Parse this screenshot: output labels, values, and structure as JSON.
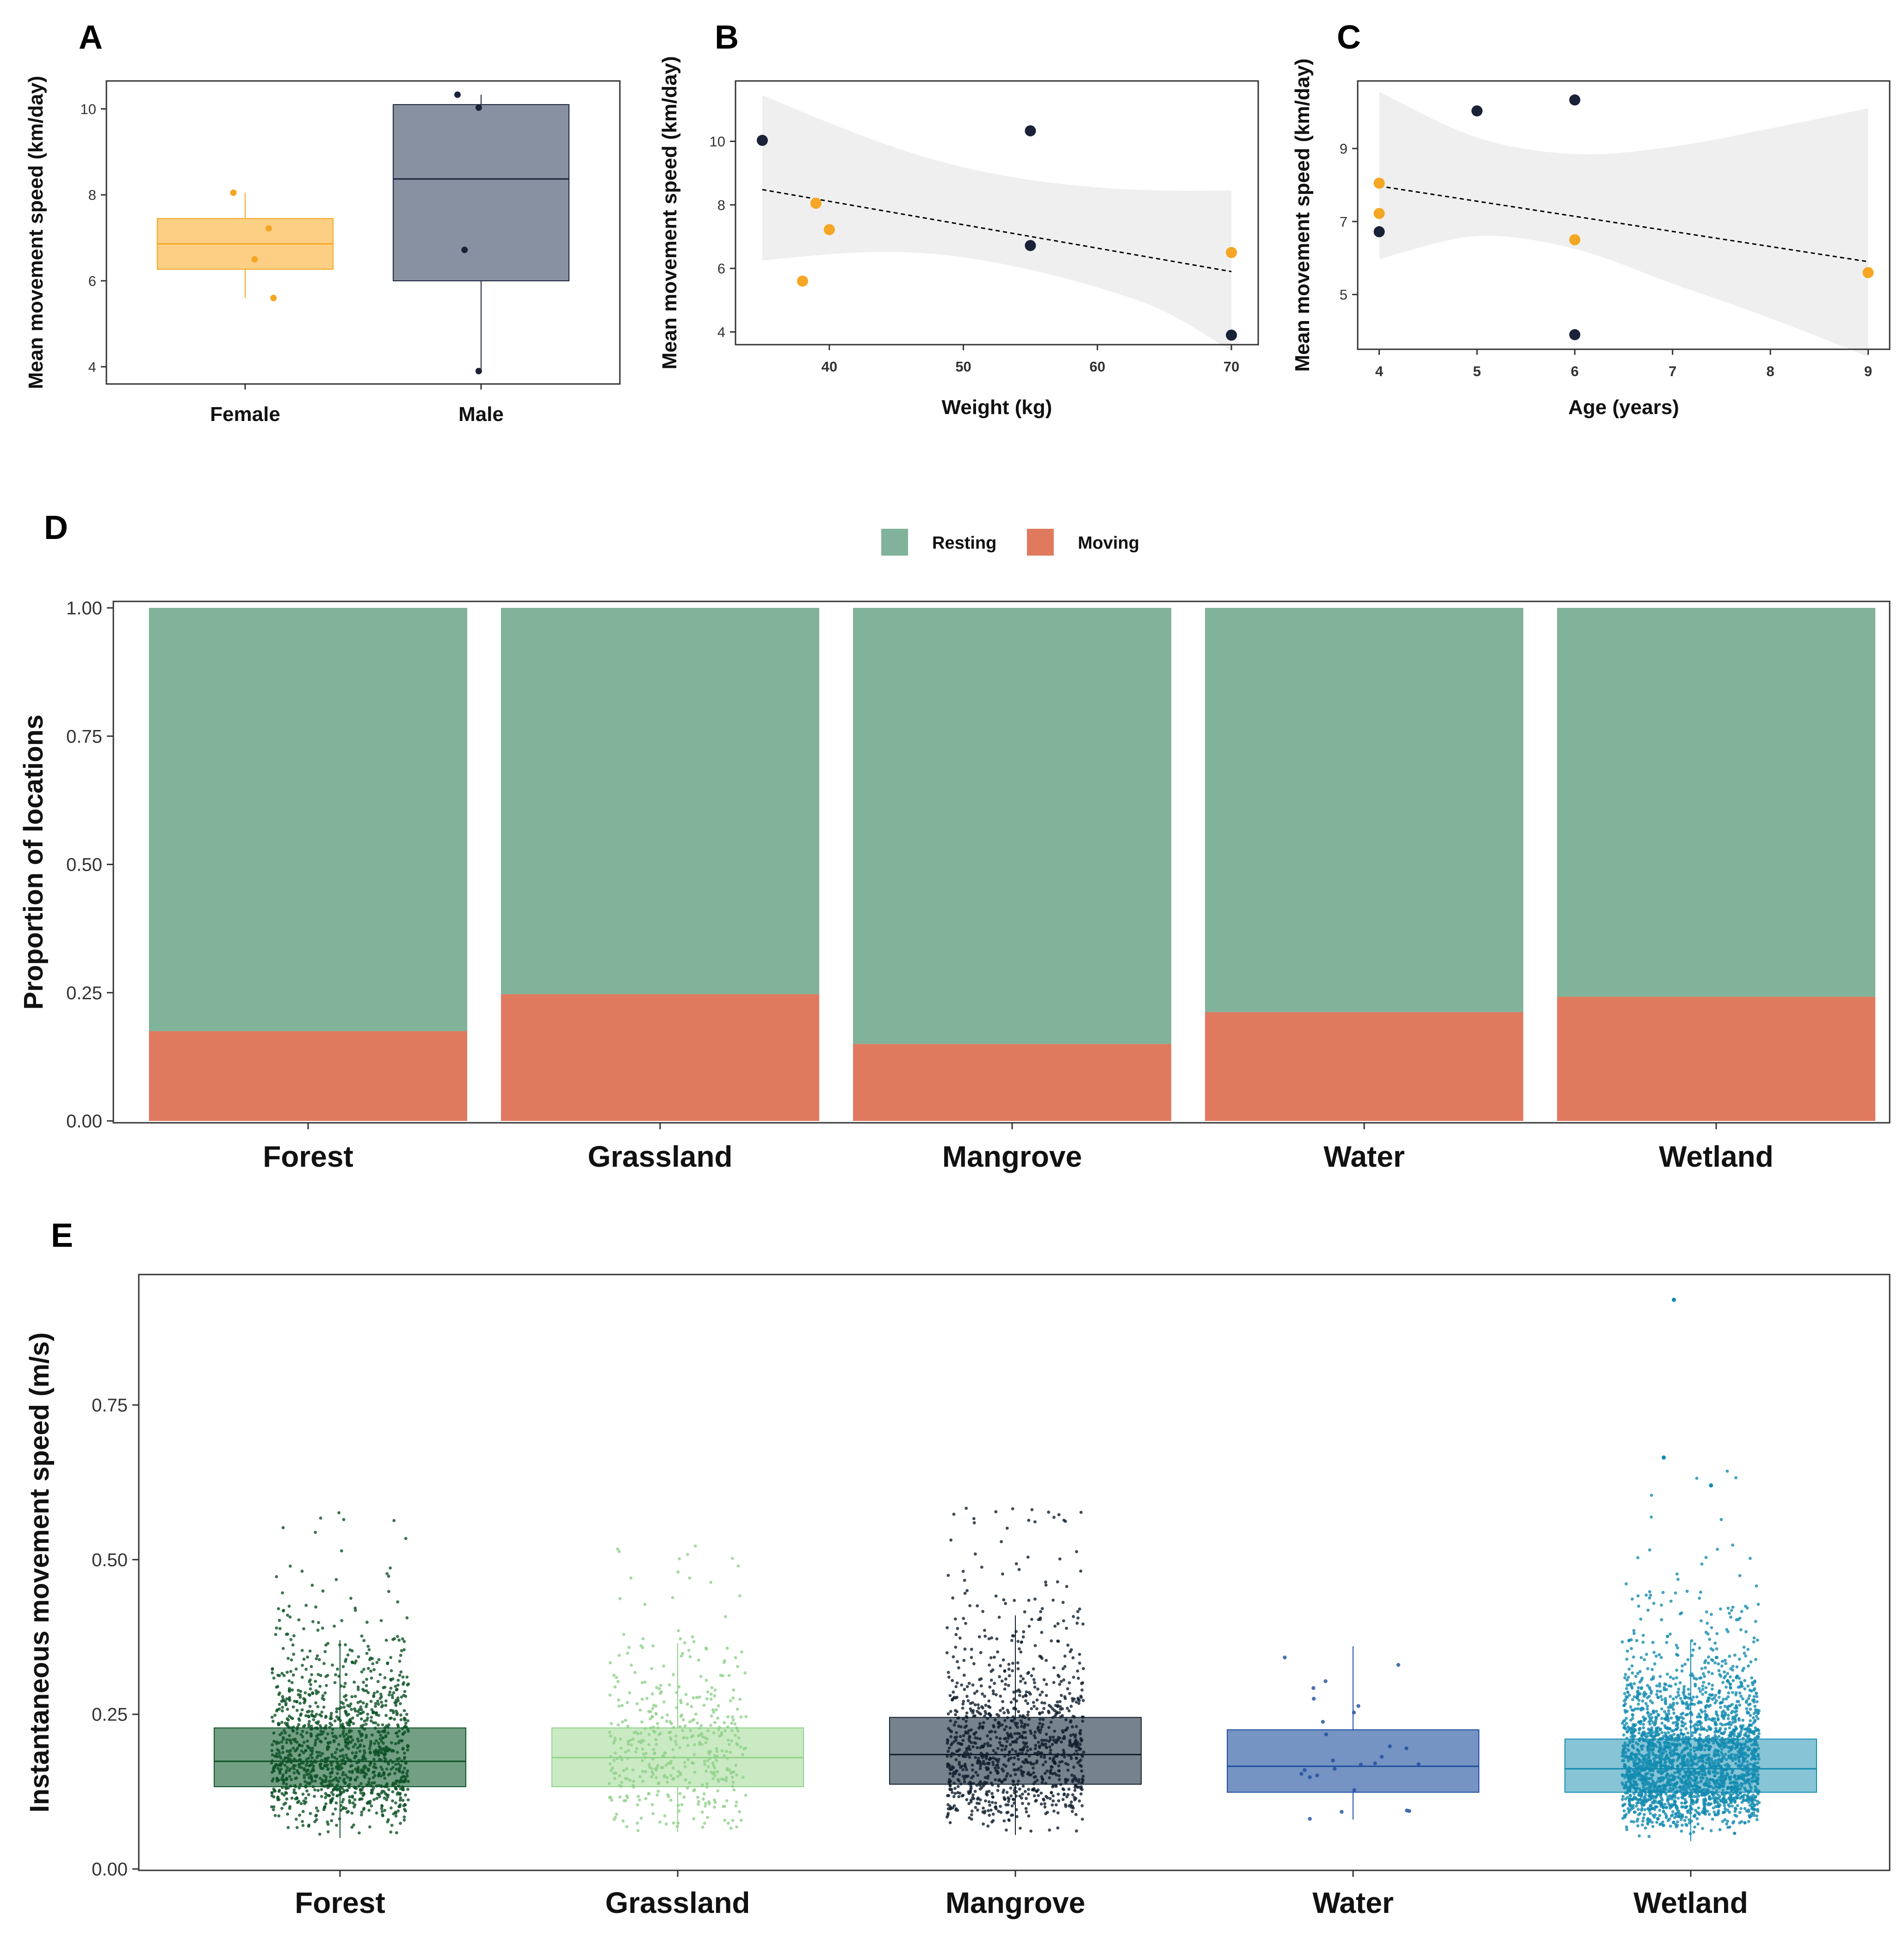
{
  "chart_data": [
    {
      "panel": "A",
      "type": "box",
      "ylabel": "Mean movement speed (km/day)",
      "categories": [
        "Female",
        "Male"
      ],
      "ylim": [
        3.6,
        10.65
      ],
      "yticks": [
        4,
        6,
        8,
        10
      ],
      "boxes": [
        {
          "category": "Female",
          "color": "#F5A623",
          "fill": "#FCCF85",
          "min": 5.6,
          "q1": 6.27,
          "median": 6.86,
          "q3": 7.45,
          "max": 8.05
        },
        {
          "category": "Male",
          "color": "#1A2238",
          "fill": "#8891A1",
          "min": 3.9,
          "q1": 6.0,
          "median": 8.37,
          "q3": 10.1,
          "max": 10.33
        }
      ],
      "points": [
        {
          "category": "Female",
          "jitter": -0.05,
          "y": 8.05
        },
        {
          "category": "Female",
          "jitter": 0.1,
          "y": 7.22
        },
        {
          "category": "Female",
          "jitter": 0.04,
          "y": 6.5
        },
        {
          "category": "Female",
          "jitter": 0.12,
          "y": 5.6
        },
        {
          "category": "Male",
          "jitter": -0.1,
          "y": 10.33
        },
        {
          "category": "Male",
          "jitter": -0.01,
          "y": 10.03
        },
        {
          "category": "Male",
          "jitter": -0.07,
          "y": 6.72
        },
        {
          "category": "Male",
          "jitter": -0.01,
          "y": 3.9
        }
      ]
    },
    {
      "panel": "B",
      "type": "scatter",
      "xlabel": "Weight (kg)",
      "ylabel": "Mean movement speed (km/day)",
      "xlim": [
        33,
        72
      ],
      "ylim": [
        3.6,
        11.9
      ],
      "xticks": [
        40,
        50,
        60,
        70
      ],
      "yticks": [
        4,
        6,
        8,
        10
      ],
      "points": [
        {
          "x": 35,
          "y": 10.03,
          "group": "male"
        },
        {
          "x": 38,
          "y": 5.6,
          "group": "female"
        },
        {
          "x": 39,
          "y": 8.05,
          "group": "female"
        },
        {
          "x": 40,
          "y": 7.22,
          "group": "female"
        },
        {
          "x": 55,
          "y": 10.33,
          "group": "male"
        },
        {
          "x": 55,
          "y": 6.72,
          "group": "male"
        },
        {
          "x": 70,
          "y": 6.5,
          "group": "female"
        },
        {
          "x": 70,
          "y": 3.9,
          "group": "male"
        }
      ],
      "fit": [
        {
          "x": 35,
          "y": 8.48
        },
        {
          "x": 70,
          "y": 5.9
        }
      ],
      "ci": [
        {
          "x": 35,
          "lo": 6.25,
          "hi": 11.45
        },
        {
          "x": 42,
          "lo": 6.5,
          "hi": 10.25
        },
        {
          "x": 48,
          "lo": 6.45,
          "hi": 9.4
        },
        {
          "x": 54,
          "lo": 6.05,
          "hi": 8.85
        },
        {
          "x": 60,
          "lo": 5.4,
          "hi": 8.55
        },
        {
          "x": 65,
          "lo": 4.65,
          "hi": 8.45
        },
        {
          "x": 70,
          "lo": 3.4,
          "hi": 8.45
        }
      ]
    },
    {
      "panel": "C",
      "type": "scatter",
      "xlabel": "Age (years)",
      "ylabel": "Mean movement speed (km/day)",
      "xlim": [
        3.78,
        9.22
      ],
      "ylim": [
        3.5,
        10.85
      ],
      "xticks": [
        4,
        5,
        6,
        7,
        8,
        9
      ],
      "yticks": [
        5,
        7,
        9
      ],
      "points": [
        {
          "x": 4,
          "y": 8.05,
          "group": "female"
        },
        {
          "x": 4,
          "y": 7.22,
          "group": "female"
        },
        {
          "x": 4,
          "y": 6.72,
          "group": "male"
        },
        {
          "x": 5,
          "y": 10.03,
          "group": "male"
        },
        {
          "x": 6,
          "y": 10.33,
          "group": "male"
        },
        {
          "x": 6,
          "y": 6.5,
          "group": "female"
        },
        {
          "x": 6,
          "y": 3.9,
          "group": "male"
        },
        {
          "x": 9,
          "y": 5.6,
          "group": "female"
        }
      ],
      "fit": [
        {
          "x": 4,
          "y": 7.97
        },
        {
          "x": 9,
          "y": 5.9
        }
      ],
      "ci": [
        {
          "x": 4,
          "lo": 5.97,
          "hi": 10.55
        },
        {
          "x": 5,
          "lo": 6.6,
          "hi": 9.3
        },
        {
          "x": 6,
          "lo": 6.25,
          "hi": 8.85
        },
        {
          "x": 7,
          "lo": 5.3,
          "hi": 9.05
        },
        {
          "x": 8,
          "lo": 4.35,
          "hi": 9.55
        },
        {
          "x": 9,
          "lo": 3.3,
          "hi": 10.1
        }
      ]
    },
    {
      "panel": "D",
      "type": "bar",
      "stacked": true,
      "ylabel": "Proportion of locations",
      "categories": [
        "Forest",
        "Grassland",
        "Mangrove",
        "Water",
        "Wetland"
      ],
      "ylim": [
        0,
        1
      ],
      "yticks": [
        "0.00",
        "0.25",
        "0.50",
        "0.75",
        "1.00"
      ],
      "legend_position": "top",
      "series": [
        {
          "name": "Moving",
          "color": "#E07A5F",
          "values": [
            0.175,
            0.247,
            0.15,
            0.212,
            0.242
          ]
        },
        {
          "name": "Resting",
          "color": "#81B29A",
          "values": [
            0.825,
            0.753,
            0.85,
            0.788,
            0.758
          ]
        }
      ]
    },
    {
      "panel": "E",
      "type": "box",
      "ylabel": "Instantaneous movement speed (m/s)",
      "categories": [
        "Forest",
        "Grassland",
        "Mangrove",
        "Water",
        "Wetland"
      ],
      "ylim": [
        0,
        0.94
      ],
      "yticks": [
        "0.00",
        "0.25",
        "0.50",
        "0.75"
      ],
      "boxes": [
        {
          "category": "Forest",
          "color": "#0D5126",
          "fill": "#6C9A7D",
          "min": 0.05,
          "q1": 0.133,
          "median": 0.174,
          "q3": 0.228,
          "max": 0.37,
          "spread_max": 0.59,
          "n_points": 1300
        },
        {
          "category": "Grassland",
          "color": "#8FD18A",
          "fill": "#C7E9C0",
          "min": 0.06,
          "q1": 0.133,
          "median": 0.18,
          "q3": 0.228,
          "max": 0.365,
          "spread_max": 0.53,
          "n_points": 450
        },
        {
          "category": "Mangrove",
          "color": "#0F1E2D",
          "fill": "#6F7B86",
          "min": 0.055,
          "q1": 0.137,
          "median": 0.185,
          "q3": 0.245,
          "max": 0.41,
          "spread_max": 0.585,
          "n_points": 1100
        },
        {
          "category": "Water",
          "color": "#1E4E9C",
          "fill": "#6E8DC0",
          "min": 0.08,
          "q1": 0.124,
          "median": 0.166,
          "q3": 0.225,
          "max": 0.36,
          "spread_max": 0.36,
          "n_points": 26
        },
        {
          "category": "Wetland",
          "color": "#138BB0",
          "fill": "#7FC1D4",
          "min": 0.045,
          "q1": 0.124,
          "median": 0.162,
          "q3": 0.21,
          "max": 0.37,
          "spread_max": 0.665,
          "n_points": 2600
        }
      ],
      "outliers": [
        {
          "category": "Wetland",
          "jitter": -0.05,
          "y": 0.92
        },
        {
          "category": "Wetland",
          "jitter": -0.08,
          "y": 0.665
        },
        {
          "category": "Wetland",
          "jitter": 0.06,
          "y": 0.62
        }
      ]
    }
  ]
}
